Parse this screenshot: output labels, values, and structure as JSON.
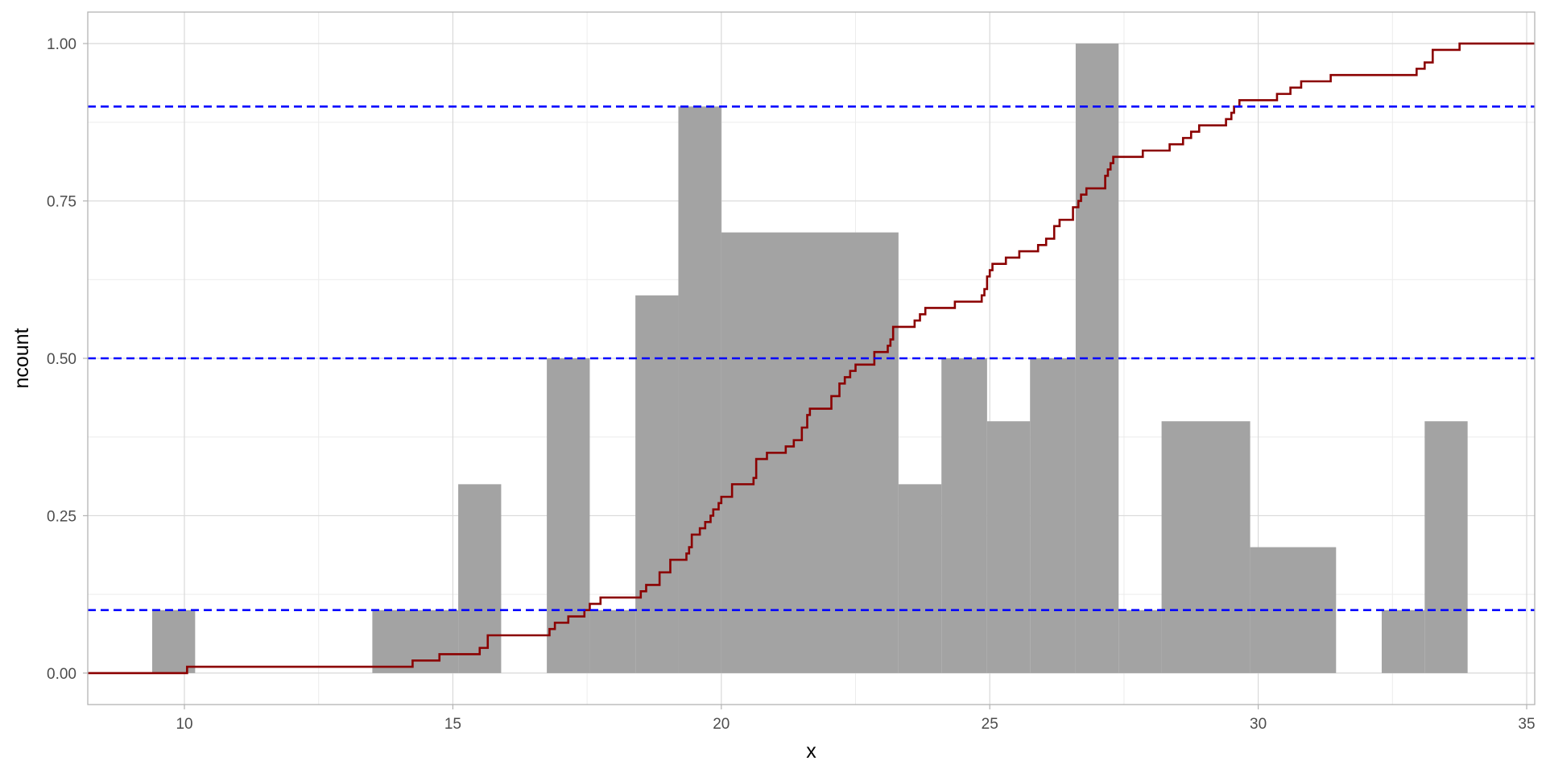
{
  "chart_data": {
    "type": "bar",
    "subtype": "histogram with ecdf step line",
    "title": "",
    "xlabel": "x",
    "ylabel": "ncount",
    "xlim": [
      8.2,
      35.15
    ],
    "ylim": [
      -0.05,
      1.05
    ],
    "x_ticks": [
      10,
      15,
      20,
      25,
      30,
      35
    ],
    "x_tick_labels": [
      "10",
      "15",
      "20",
      "25",
      "30",
      "35"
    ],
    "y_ticks": [
      0,
      0.25,
      0.5,
      0.75,
      1.0
    ],
    "y_tick_labels": [
      "0.00",
      "0.25",
      "0.50",
      "0.75",
      "1.00"
    ],
    "grid": true,
    "histogram": {
      "bin_width": 0.818,
      "bins": [
        {
          "x0": 9.4,
          "x1": 10.2,
          "ncount": 0.1
        },
        {
          "x0": 13.5,
          "x1": 15.1,
          "ncount": 0.1
        },
        {
          "x0": 15.1,
          "x1": 15.9,
          "ncount": 0.3
        },
        {
          "x0": 16.75,
          "x1": 17.55,
          "ncount": 0.5
        },
        {
          "x0": 17.55,
          "x1": 18.4,
          "ncount": 0.1
        },
        {
          "x0": 18.4,
          "x1": 19.2,
          "ncount": 0.6
        },
        {
          "x0": 19.2,
          "x1": 20.0,
          "ncount": 0.9
        },
        {
          "x0": 20.0,
          "x1": 23.3,
          "ncount": 0.7
        },
        {
          "x0": 23.3,
          "x1": 24.1,
          "ncount": 0.3
        },
        {
          "x0": 24.1,
          "x1": 24.95,
          "ncount": 0.5
        },
        {
          "x0": 24.95,
          "x1": 25.75,
          "ncount": 0.4
        },
        {
          "x0": 25.75,
          "x1": 26.6,
          "ncount": 0.5
        },
        {
          "x0": 26.6,
          "x1": 27.4,
          "ncount": 1.0
        },
        {
          "x0": 27.4,
          "x1": 28.2,
          "ncount": 0.1
        },
        {
          "x0": 28.2,
          "x1": 29.85,
          "ncount": 0.4
        },
        {
          "x0": 29.85,
          "x1": 31.45,
          "ncount": 0.2
        },
        {
          "x0": 32.3,
          "x1": 33.1,
          "ncount": 0.1
        },
        {
          "x0": 33.1,
          "x1": 33.9,
          "ncount": 0.4
        }
      ],
      "color": "#a3a3a3"
    },
    "ecdf": {
      "color": "#8b0000",
      "points": [
        [
          8.2,
          0.0
        ],
        [
          10.05,
          0.01
        ],
        [
          14.25,
          0.02
        ],
        [
          14.75,
          0.03
        ],
        [
          15.5,
          0.04
        ],
        [
          15.65,
          0.06
        ],
        [
          16.8,
          0.07
        ],
        [
          16.9,
          0.08
        ],
        [
          17.15,
          0.09
        ],
        [
          17.45,
          0.1
        ],
        [
          17.55,
          0.11
        ],
        [
          17.75,
          0.12
        ],
        [
          18.5,
          0.13
        ],
        [
          18.6,
          0.14
        ],
        [
          18.85,
          0.16
        ],
        [
          19.05,
          0.18
        ],
        [
          19.35,
          0.19
        ],
        [
          19.4,
          0.2
        ],
        [
          19.45,
          0.22
        ],
        [
          19.6,
          0.23
        ],
        [
          19.7,
          0.24
        ],
        [
          19.8,
          0.25
        ],
        [
          19.85,
          0.26
        ],
        [
          19.95,
          0.27
        ],
        [
          20.0,
          0.28
        ],
        [
          20.2,
          0.3
        ],
        [
          20.6,
          0.31
        ],
        [
          20.65,
          0.34
        ],
        [
          20.85,
          0.35
        ],
        [
          21.2,
          0.36
        ],
        [
          21.35,
          0.37
        ],
        [
          21.5,
          0.39
        ],
        [
          21.6,
          0.41
        ],
        [
          21.65,
          0.42
        ],
        [
          22.05,
          0.44
        ],
        [
          22.2,
          0.46
        ],
        [
          22.3,
          0.47
        ],
        [
          22.4,
          0.48
        ],
        [
          22.5,
          0.49
        ],
        [
          22.85,
          0.51
        ],
        [
          23.1,
          0.52
        ],
        [
          23.15,
          0.53
        ],
        [
          23.2,
          0.55
        ],
        [
          23.6,
          0.56
        ],
        [
          23.7,
          0.57
        ],
        [
          23.8,
          0.58
        ],
        [
          24.35,
          0.59
        ],
        [
          24.85,
          0.6
        ],
        [
          24.9,
          0.61
        ],
        [
          24.95,
          0.63
        ],
        [
          25.0,
          0.64
        ],
        [
          25.05,
          0.65
        ],
        [
          25.3,
          0.66
        ],
        [
          25.55,
          0.67
        ],
        [
          25.9,
          0.68
        ],
        [
          26.05,
          0.69
        ],
        [
          26.2,
          0.71
        ],
        [
          26.3,
          0.72
        ],
        [
          26.55,
          0.74
        ],
        [
          26.65,
          0.75
        ],
        [
          26.7,
          0.76
        ],
        [
          26.8,
          0.77
        ],
        [
          27.15,
          0.79
        ],
        [
          27.2,
          0.8
        ],
        [
          27.25,
          0.81
        ],
        [
          27.3,
          0.82
        ],
        [
          27.85,
          0.83
        ],
        [
          28.35,
          0.84
        ],
        [
          28.6,
          0.85
        ],
        [
          28.75,
          0.86
        ],
        [
          28.9,
          0.87
        ],
        [
          29.4,
          0.88
        ],
        [
          29.5,
          0.89
        ],
        [
          29.55,
          0.9
        ],
        [
          29.65,
          0.91
        ],
        [
          30.35,
          0.92
        ],
        [
          30.6,
          0.93
        ],
        [
          30.8,
          0.94
        ],
        [
          31.35,
          0.95
        ],
        [
          32.95,
          0.96
        ],
        [
          33.1,
          0.97
        ],
        [
          33.25,
          0.99
        ],
        [
          33.75,
          1.0
        ],
        [
          35.15,
          1.0
        ]
      ]
    },
    "reference_lines": {
      "y": [
        0.1,
        0.5,
        0.9
      ],
      "color": "#0000ff",
      "style": "dashed"
    }
  }
}
